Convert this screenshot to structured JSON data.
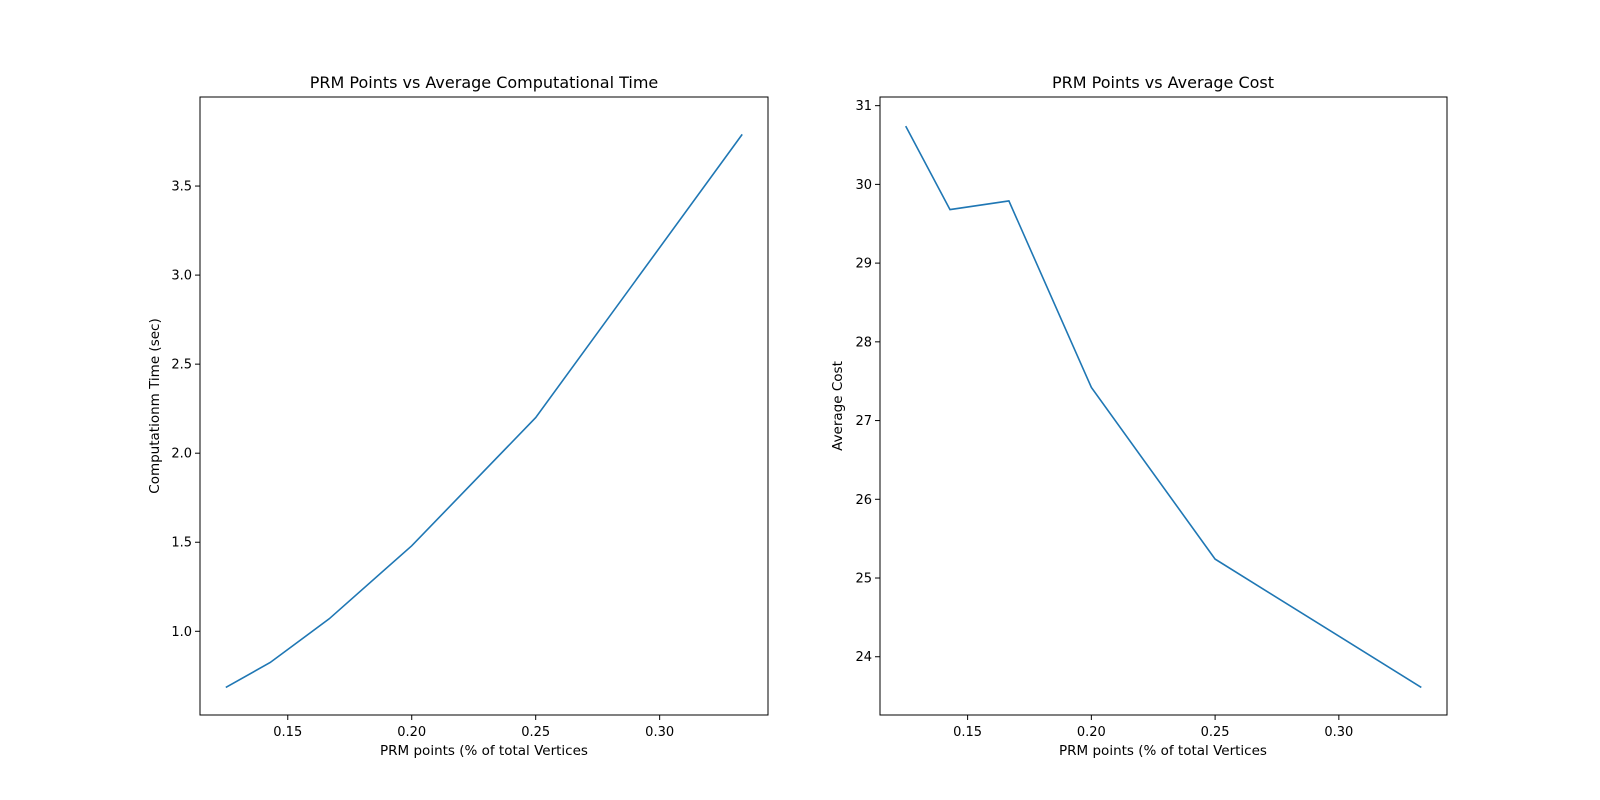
{
  "colors": {
    "series": "#1f77b4",
    "axes": "#000000",
    "background": "#ffffff"
  },
  "chart_data": [
    {
      "type": "line",
      "title": "PRM Points vs Average Computational Time",
      "xlabel": "PRM points (% of total Vertices",
      "ylabel": "Computationm Time (sec)",
      "xlim": [
        0.1146,
        0.3437
      ],
      "ylim": [
        0.53,
        4.0
      ],
      "grid": false,
      "xticks": [
        0.15,
        0.2,
        0.25,
        0.3
      ],
      "xtick_labels": [
        "0.15",
        "0.20",
        "0.25",
        "0.30"
      ],
      "yticks": [
        1.0,
        1.5,
        2.0,
        2.5,
        3.0,
        3.5
      ],
      "ytick_labels": [
        "1.0",
        "1.5",
        "2.0",
        "2.5",
        "3.0",
        "3.5"
      ],
      "series": [
        {
          "x": [
            0.125,
            0.1429,
            0.1667,
            0.2,
            0.25,
            0.3333
          ],
          "y": [
            0.685,
            0.825,
            1.07,
            1.48,
            2.2,
            3.79
          ]
        }
      ]
    },
    {
      "type": "line",
      "title": "PRM Points vs Average Cost",
      "xlabel": "PRM points (% of total Vertices",
      "ylabel": "Average Cost",
      "xlim": [
        0.1146,
        0.3437
      ],
      "ylim": [
        23.26,
        31.11
      ],
      "grid": false,
      "xticks": [
        0.15,
        0.2,
        0.25,
        0.3
      ],
      "xtick_labels": [
        "0.15",
        "0.20",
        "0.25",
        "0.30"
      ],
      "yticks": [
        24,
        25,
        26,
        27,
        28,
        29,
        30,
        31
      ],
      "ytick_labels": [
        "24",
        "25",
        "26",
        "27",
        "28",
        "29",
        "30",
        "31"
      ],
      "series": [
        {
          "x": [
            0.125,
            0.1429,
            0.1667,
            0.2,
            0.25,
            0.3333
          ],
          "y": [
            30.74,
            29.68,
            29.79,
            27.42,
            25.24,
            23.61
          ]
        }
      ]
    }
  ]
}
